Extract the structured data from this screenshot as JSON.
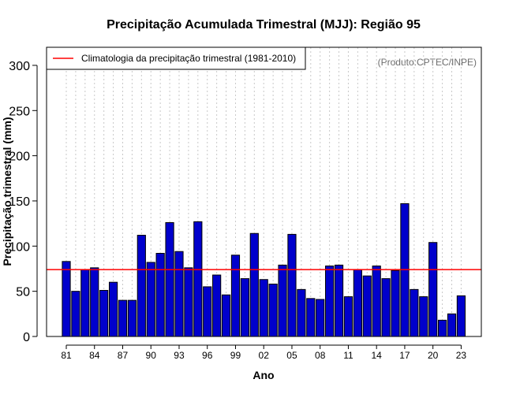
{
  "chart_data": {
    "type": "bar",
    "title": "Precipitação Acumulada Trimestral (MJJ): Região 95",
    "xlabel": "Ano",
    "ylabel": "Precipitação trimestral (mm)",
    "credit": "(Produto:CPTEC/INPE)",
    "ylim": [
      0,
      320
    ],
    "yticks": [
      0,
      50,
      100,
      150,
      200,
      250,
      300
    ],
    "categories": [
      "1981",
      "1982",
      "1983",
      "1984",
      "1985",
      "1986",
      "1987",
      "1988",
      "1989",
      "1990",
      "1991",
      "1992",
      "1993",
      "1994",
      "1995",
      "1996",
      "1997",
      "1998",
      "1999",
      "2000",
      "2001",
      "2002",
      "2003",
      "2004",
      "2005",
      "2006",
      "2007",
      "2008",
      "2009",
      "2010",
      "2011",
      "2012",
      "2013",
      "2014",
      "2015",
      "2016",
      "2017",
      "2018",
      "2019",
      "2020",
      "2021",
      "2022",
      "2023"
    ],
    "xtick_labels": [
      {
        "index": 0,
        "label": "81"
      },
      {
        "index": 3,
        "label": "84"
      },
      {
        "index": 6,
        "label": "87"
      },
      {
        "index": 9,
        "label": "90"
      },
      {
        "index": 12,
        "label": "93"
      },
      {
        "index": 15,
        "label": "96"
      },
      {
        "index": 18,
        "label": "99"
      },
      {
        "index": 21,
        "label": "02"
      },
      {
        "index": 24,
        "label": "05"
      },
      {
        "index": 27,
        "label": "08"
      },
      {
        "index": 30,
        "label": "11"
      },
      {
        "index": 33,
        "label": "14"
      },
      {
        "index": 36,
        "label": "17"
      },
      {
        "index": 39,
        "label": "20"
      },
      {
        "index": 42,
        "label": "23"
      }
    ],
    "series": [
      {
        "name": "Precipitação trimestral",
        "color": "#0000cc",
        "values": [
          83,
          50,
          74,
          76,
          51,
          60,
          40,
          40,
          112,
          82,
          92,
          126,
          94,
          76,
          127,
          55,
          68,
          46,
          90,
          64,
          114,
          63,
          58,
          79,
          113,
          52,
          42,
          41,
          78,
          79,
          44,
          74,
          67,
          78,
          64,
          73,
          147,
          52,
          44,
          104,
          18,
          25,
          45
        ]
      }
    ],
    "reference_line": {
      "label": "Climatologia da precipitação trimestral (1981-2010)",
      "value": 74,
      "color": "#ff0000"
    },
    "legend_position": "top-left",
    "grid": "vertical-dotted"
  }
}
